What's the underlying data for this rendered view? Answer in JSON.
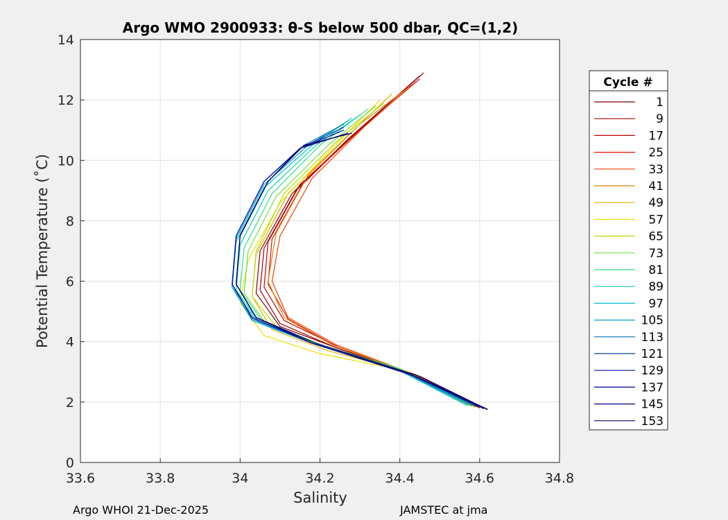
{
  "chart_data": {
    "type": "line",
    "title": "Argo WMO 2900933: θ-S below 500 dbar,  QC=(1,2)",
    "xlabel": "Salinity",
    "ylabel": "Potential Temperature (˚C)",
    "xlim": [
      33.6,
      34.8
    ],
    "ylim": [
      0,
      14
    ],
    "xticks": [
      "33.6",
      "33.8",
      "34",
      "34.2",
      "34.4",
      "34.6",
      "34.8"
    ],
    "yticks": [
      "0",
      "2",
      "4",
      "6",
      "8",
      "10",
      "12",
      "14"
    ],
    "grid": true,
    "legend_title": "Cycle #",
    "legend_position": "right, outside",
    "series": [
      {
        "name": "1",
        "color": "#7f0000",
        "salinity": [
          34.62,
          34.45,
          34.25,
          34.1,
          34.04,
          34.05,
          34.13,
          34.27,
          34.45
        ],
        "theta": [
          1.75,
          2.85,
          3.75,
          4.5,
          5.6,
          7.0,
          8.9,
          10.7,
          12.8
        ]
      },
      {
        "name": "9",
        "color": "#a00000",
        "salinity": [
          34.61,
          34.44,
          34.24,
          34.1,
          34.05,
          34.06,
          34.14,
          34.28,
          34.46
        ],
        "theta": [
          1.78,
          2.9,
          3.8,
          4.6,
          5.7,
          7.1,
          9.0,
          10.8,
          12.9
        ]
      },
      {
        "name": "17",
        "color": "#c00000",
        "salinity": [
          34.61,
          34.44,
          34.25,
          34.11,
          34.06,
          34.07,
          34.15,
          34.29,
          34.45
        ],
        "theta": [
          1.8,
          2.9,
          3.8,
          4.7,
          5.8,
          7.3,
          9.2,
          10.9,
          12.7
        ]
      },
      {
        "name": "25",
        "color": "#e01000",
        "salinity": [
          34.6,
          34.43,
          34.24,
          34.12,
          34.07,
          34.08,
          34.16,
          34.3,
          34.44
        ],
        "theta": [
          1.8,
          2.95,
          3.85,
          4.75,
          5.9,
          7.4,
          9.3,
          11.0,
          12.6
        ]
      },
      {
        "name": "33",
        "color": "#f04000",
        "salinity": [
          34.6,
          34.43,
          34.24,
          34.12,
          34.08,
          34.1,
          34.18,
          34.31,
          34.43
        ],
        "theta": [
          1.82,
          2.95,
          3.9,
          4.8,
          6.0,
          7.5,
          9.4,
          11.1,
          12.5
        ]
      },
      {
        "name": "41",
        "color": "#e08000",
        "salinity": [
          34.59,
          34.42,
          34.23,
          34.11,
          34.07,
          34.09,
          34.17,
          34.3,
          34.42
        ],
        "theta": [
          1.83,
          3.0,
          3.9,
          4.8,
          6.0,
          7.6,
          9.5,
          11.2,
          12.4
        ]
      },
      {
        "name": "49",
        "color": "#e0b000",
        "salinity": [
          34.59,
          34.42,
          34.22,
          34.08,
          34.03,
          34.04,
          34.12,
          34.26,
          34.38
        ],
        "theta": [
          1.85,
          3.0,
          3.7,
          4.4,
          5.5,
          6.9,
          8.9,
          10.7,
          12.2
        ]
      },
      {
        "name": "57",
        "color": "#f0e000",
        "salinity": [
          34.58,
          34.41,
          34.2,
          34.06,
          34.0,
          34.02,
          34.1,
          34.23,
          34.35
        ],
        "theta": [
          1.85,
          3.05,
          3.6,
          4.2,
          5.3,
          6.7,
          8.6,
          10.4,
          12.0
        ]
      },
      {
        "name": "65",
        "color": "#b0e000",
        "salinity": [
          34.58,
          34.41,
          34.22,
          34.09,
          34.03,
          34.04,
          34.11,
          34.24,
          34.36
        ],
        "theta": [
          1.86,
          3.05,
          3.8,
          4.5,
          5.5,
          7.0,
          8.9,
          10.6,
          11.9
        ]
      },
      {
        "name": "73",
        "color": "#70e040",
        "salinity": [
          34.58,
          34.4,
          34.21,
          34.07,
          34.01,
          34.02,
          34.09,
          34.22,
          34.34
        ],
        "theta": [
          1.87,
          3.1,
          3.85,
          4.5,
          5.6,
          7.0,
          8.8,
          10.5,
          11.8
        ]
      },
      {
        "name": "81",
        "color": "#30e080",
        "salinity": [
          34.57,
          34.4,
          34.2,
          34.06,
          34.0,
          34.01,
          34.08,
          34.2,
          34.32
        ],
        "theta": [
          1.88,
          3.1,
          3.9,
          4.6,
          5.7,
          7.1,
          8.9,
          10.5,
          11.7
        ]
      },
      {
        "name": "89",
        "color": "#10d0b0",
        "salinity": [
          34.57,
          34.39,
          34.19,
          34.05,
          33.99,
          34.0,
          34.07,
          34.19,
          34.3
        ],
        "theta": [
          1.88,
          3.1,
          3.9,
          4.6,
          5.7,
          7.2,
          9.0,
          10.5,
          11.5
        ]
      },
      {
        "name": "97",
        "color": "#00c0d0",
        "salinity": [
          34.57,
          34.39,
          34.18,
          34.04,
          33.98,
          33.99,
          34.06,
          34.18,
          34.28
        ],
        "theta": [
          1.9,
          3.1,
          3.95,
          4.7,
          5.8,
          7.3,
          9.1,
          10.5,
          11.4
        ]
      },
      {
        "name": "105",
        "color": "#00a0c8",
        "salinity": [
          34.58,
          34.4,
          34.18,
          34.03,
          33.98,
          33.99,
          34.06,
          34.17,
          34.27
        ],
        "theta": [
          1.88,
          3.05,
          3.95,
          4.7,
          5.8,
          7.4,
          9.2,
          10.5,
          11.3
        ]
      },
      {
        "name": "113",
        "color": "#0070b0",
        "salinity": [
          34.59,
          34.41,
          34.18,
          34.03,
          33.98,
          33.99,
          34.06,
          34.16,
          34.26
        ],
        "theta": [
          1.86,
          3.0,
          3.95,
          4.75,
          5.9,
          7.5,
          9.3,
          10.5,
          11.2
        ]
      },
      {
        "name": "121",
        "color": "#0040a0",
        "salinity": [
          34.6,
          34.42,
          34.18,
          34.03,
          33.98,
          33.99,
          34.06,
          34.15,
          34.26
        ],
        "theta": [
          1.83,
          2.95,
          3.95,
          4.8,
          5.9,
          7.5,
          9.3,
          10.4,
          11.1
        ]
      },
      {
        "name": "129",
        "color": "#0010b0",
        "salinity": [
          34.61,
          34.43,
          34.18,
          34.03,
          33.98,
          33.99,
          34.06,
          34.15,
          34.26
        ],
        "theta": [
          1.8,
          2.9,
          3.95,
          4.8,
          5.9,
          7.5,
          9.3,
          10.4,
          11.0
        ]
      },
      {
        "name": "137",
        "color": "#0000a0",
        "salinity": [
          34.61,
          34.44,
          34.18,
          34.04,
          33.99,
          34.0,
          34.07,
          34.15,
          34.27
        ],
        "theta": [
          1.78,
          2.85,
          3.95,
          4.8,
          5.9,
          7.5,
          9.3,
          10.4,
          10.9
        ]
      },
      {
        "name": "145",
        "color": "#000080",
        "salinity": [
          34.62,
          34.44,
          34.18,
          34.04,
          33.99,
          34.0,
          34.07,
          34.15,
          34.27
        ],
        "theta": [
          1.76,
          2.85,
          3.95,
          4.8,
          5.9,
          7.5,
          9.3,
          10.4,
          10.9
        ]
      },
      {
        "name": "153",
        "color": "#000060",
        "salinity": [
          34.62,
          34.45,
          34.19,
          34.04,
          33.99,
          34.0,
          34.07,
          34.16,
          34.28
        ],
        "theta": [
          1.75,
          2.85,
          3.95,
          4.8,
          5.9,
          7.5,
          9.3,
          10.5,
          10.9
        ]
      }
    ]
  },
  "footer": {
    "left": "Argo WHOI 21-Dec-2025",
    "right": "JAMSTEC at jma"
  }
}
